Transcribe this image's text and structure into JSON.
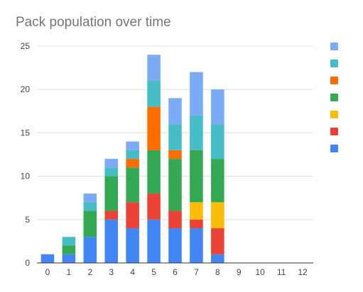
{
  "chart_data": {
    "type": "bar",
    "stacked": true,
    "title": "Pack population over time",
    "xlabel": "",
    "ylabel": "",
    "categories": [
      "0",
      "1",
      "2",
      "3",
      "4",
      "5",
      "6",
      "7",
      "8",
      "9",
      "10",
      "11",
      "12"
    ],
    "ylim": [
      0,
      25
    ],
    "yticks": [
      0,
      5,
      10,
      15,
      20,
      25
    ],
    "grid": true,
    "legend_position": "right",
    "series": [
      {
        "color": "#4285f4",
        "values": [
          1,
          1,
          3,
          5,
          4,
          5,
          4,
          4,
          1,
          0,
          0,
          0,
          0
        ]
      },
      {
        "color": "#ea4335",
        "values": [
          0,
          0,
          0,
          1,
          3,
          3,
          2,
          1,
          3,
          0,
          0,
          0,
          0
        ]
      },
      {
        "color": "#fbbc04",
        "values": [
          0,
          0,
          0,
          0,
          0,
          0,
          0,
          2,
          3,
          0,
          0,
          0,
          0
        ]
      },
      {
        "color": "#34a853",
        "values": [
          0,
          1,
          3,
          4,
          4,
          5,
          6,
          6,
          5,
          0,
          0,
          0,
          0
        ]
      },
      {
        "color": "#ff6d01",
        "values": [
          0,
          0,
          0,
          0,
          1,
          5,
          1,
          0,
          0,
          0,
          0,
          0,
          0
        ]
      },
      {
        "color": "#46bdc6",
        "values": [
          0,
          1,
          1,
          1,
          1,
          3,
          3,
          4,
          4,
          0,
          0,
          0,
          0
        ]
      },
      {
        "color": "#7baaf7",
        "values": [
          0,
          0,
          1,
          1,
          1,
          3,
          3,
          5,
          4,
          0,
          0,
          0,
          0
        ]
      }
    ]
  }
}
